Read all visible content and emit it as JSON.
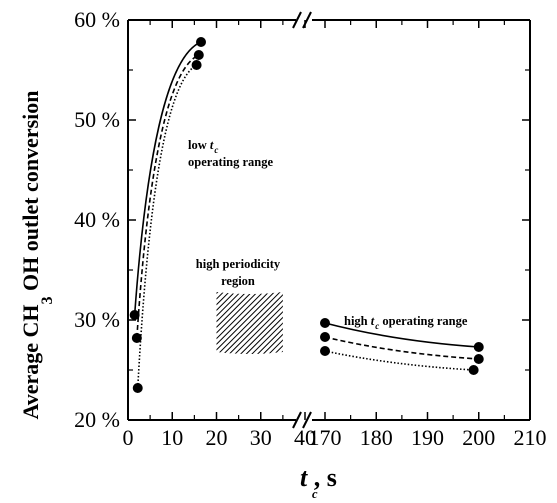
{
  "chart_data": {
    "type": "line",
    "title": "",
    "ylabel": {
      "main": "Average CH",
      "sub": "3",
      "rest": " OH outlet conversion"
    },
    "xlabel": {
      "main": "t",
      "sub": "c",
      "rest": " ,  s"
    },
    "ylim": [
      20,
      60
    ],
    "yticks": [
      "20 %",
      "30 %",
      "40 %",
      "50 %",
      "60 %"
    ],
    "ytick_values": [
      20,
      30,
      40,
      50,
      60
    ],
    "x_left": {
      "range": [
        0,
        40
      ],
      "ticks": [
        0,
        10,
        20,
        30,
        40
      ]
    },
    "x_right": {
      "range": [
        170,
        210
      ],
      "ticks": [
        170,
        180,
        190,
        200,
        210
      ]
    },
    "series": [
      {
        "style": "solid",
        "low": [
          [
            1.5,
            30.5
          ],
          [
            16.5,
            57.8
          ]
        ],
        "high": [
          [
            170,
            29.7
          ],
          [
            200,
            27.3
          ]
        ]
      },
      {
        "style": "dashed",
        "low": [
          [
            2.0,
            28.2
          ],
          [
            16.0,
            56.5
          ]
        ],
        "high": [
          [
            170,
            28.3
          ],
          [
            200,
            26.1
          ]
        ]
      },
      {
        "style": "dotted",
        "low": [
          [
            2.2,
            23.2
          ],
          [
            15.5,
            55.5
          ]
        ],
        "high": [
          [
            170,
            26.9
          ],
          [
            199,
            25.0
          ]
        ]
      }
    ],
    "annotations": {
      "low": {
        "line1": "low t",
        "sub": "c",
        "line2": "operating range"
      },
      "periodicity": {
        "line1": "high periodicity",
        "line2": "region"
      },
      "high": {
        "pre": "high t",
        "sub": "c",
        "post": " operating range"
      }
    },
    "hatched_region": {
      "x": [
        20,
        35
      ],
      "y": [
        26.8,
        32.8
      ]
    },
    "grid": false,
    "legend": "none"
  }
}
